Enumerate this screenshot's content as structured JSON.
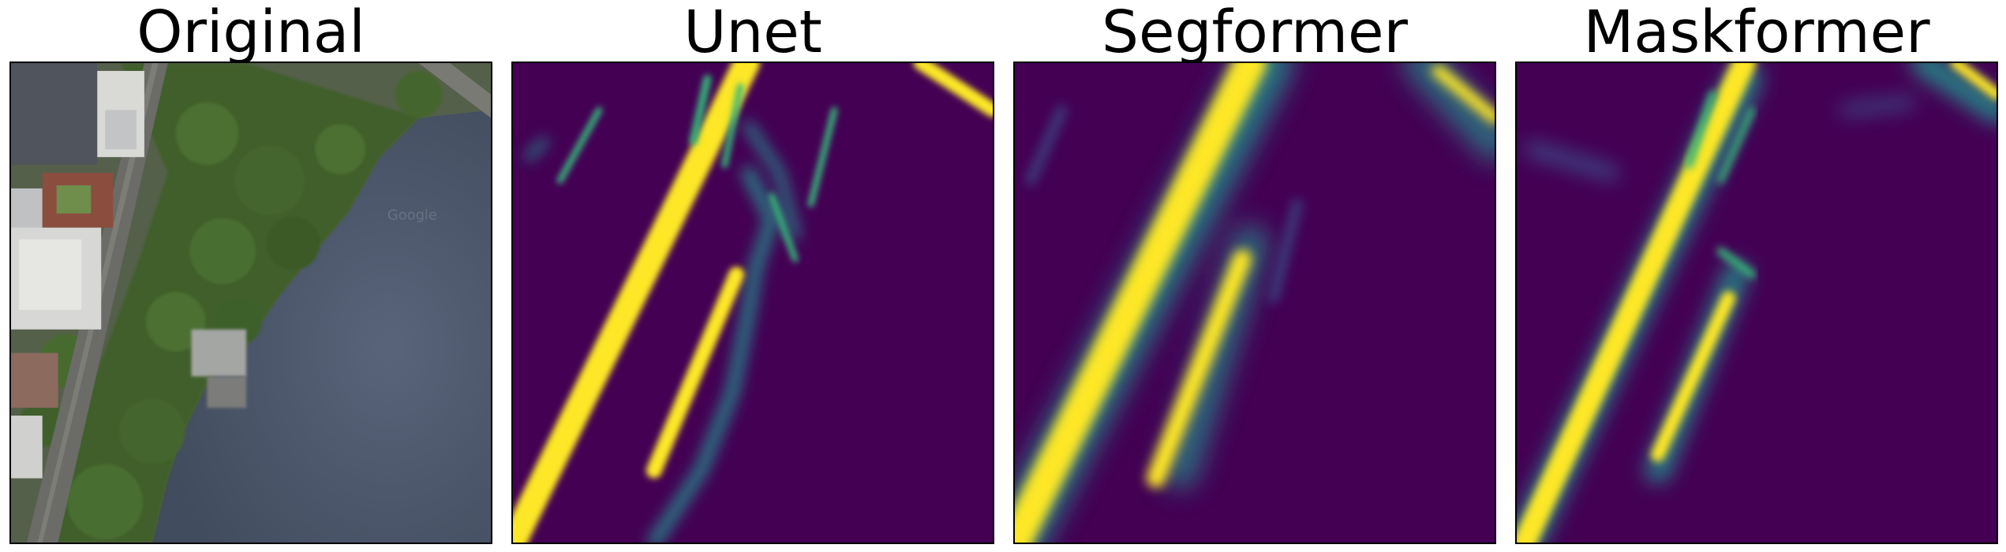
{
  "figure": {
    "panels": [
      {
        "title": "Original",
        "icon": "aerial-photo-river-road"
      },
      {
        "title": "Unet",
        "icon": "road-segmentation-heatmap"
      },
      {
        "title": "Segformer",
        "icon": "road-segmentation-heatmap"
      },
      {
        "title": "Maskformer",
        "icon": "road-segmentation-heatmap"
      }
    ],
    "photo_watermark": "Google",
    "colors": {
      "heatmap_background": "#440154",
      "heatmap_mid": "#21918c",
      "heatmap_high": "#fde725",
      "water": "#4a5566",
      "trees": "#3f5f2a",
      "road": "#6b6b67"
    }
  }
}
